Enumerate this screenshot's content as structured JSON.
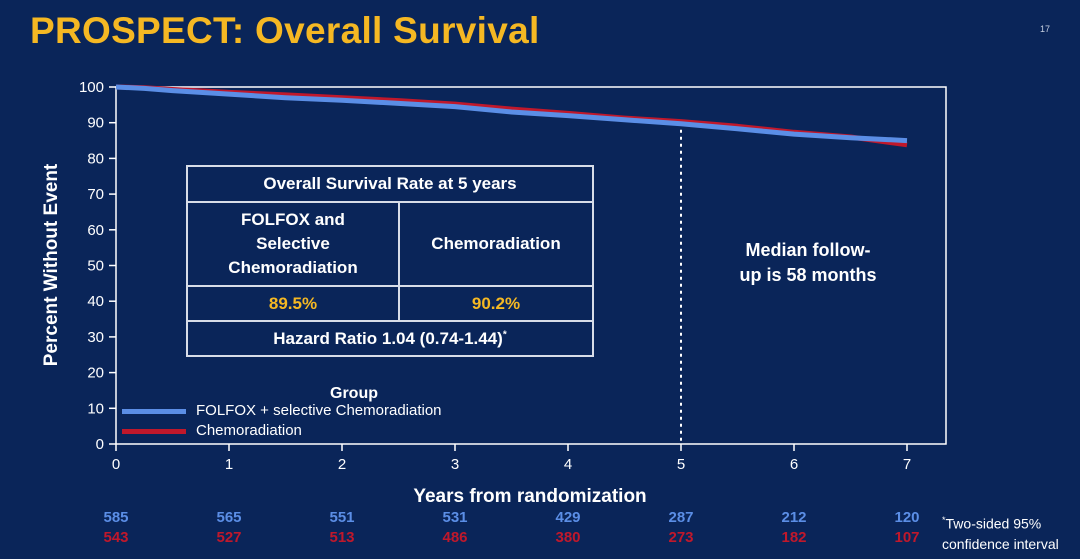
{
  "slide": {
    "title": "PROSPECT: Overall Survival",
    "number": "17"
  },
  "table": {
    "header": "Overall Survival Rate at 5 years",
    "arm1_label_lines": [
      "FOLFOX and",
      "Selective",
      "Chemoradiation"
    ],
    "arm2_label": "Chemoradiation",
    "arm1_rate": "89.5%",
    "arm2_rate": "90.2%",
    "hazard_ratio": "Hazard Ratio 1.04 (0.74-1.44)",
    "hazard_ratio_mark": "*"
  },
  "annotation": {
    "line1": "Median follow-",
    "line2": "up is 58 months"
  },
  "footnote": {
    "mark": "*",
    "line1": "Two-sided 95%",
    "line2": "confidence interval"
  },
  "colors": {
    "background": "#0a2559",
    "title": "#f5b823",
    "folfox": "#5b8ee6",
    "chemoradiation": "#c0182b",
    "axis": "#ffffff"
  },
  "chart_data": {
    "type": "line",
    "xlabel": "Years from randomization",
    "ylabel": "Percent Without Event",
    "xlim": [
      0,
      7
    ],
    "ylim": [
      0,
      100
    ],
    "xticks": [
      0,
      1,
      2,
      3,
      4,
      5,
      6,
      7
    ],
    "yticks": [
      0,
      10,
      20,
      30,
      40,
      50,
      60,
      70,
      80,
      90,
      100
    ],
    "legend_title": "Group",
    "legend_position": "bottom-left",
    "reference_line_x": 5,
    "series": [
      {
        "name": "FOLFOX + selective Chemoradiation",
        "color": "#5b8ee6",
        "x": [
          0,
          0.25,
          0.5,
          0.75,
          1,
          1.5,
          2,
          2.5,
          3,
          3.5,
          4,
          4.5,
          5,
          5.5,
          6,
          6.5,
          7
        ],
        "y": [
          100,
          99.6,
          99.0,
          98.5,
          98.0,
          97.0,
          96.3,
          95.4,
          94.5,
          93.0,
          92.0,
          90.8,
          89.7,
          88.3,
          86.8,
          85.8,
          85.0
        ],
        "at_risk": [
          585,
          565,
          551,
          531,
          429,
          287,
          212,
          120
        ]
      },
      {
        "name": "Chemoradiation",
        "color": "#c0182b",
        "x": [
          0,
          0.25,
          0.5,
          0.75,
          1,
          1.5,
          2,
          2.5,
          3,
          3.5,
          4,
          4.5,
          5,
          5.5,
          6,
          6.5,
          7
        ],
        "y": [
          100,
          99.8,
          99.3,
          98.9,
          98.5,
          97.8,
          97.0,
          96.2,
          95.2,
          93.8,
          92.6,
          91.3,
          90.3,
          89.0,
          87.3,
          86.0,
          83.8
        ],
        "at_risk": [
          543,
          527,
          513,
          486,
          380,
          273,
          182,
          107
        ]
      }
    ]
  }
}
